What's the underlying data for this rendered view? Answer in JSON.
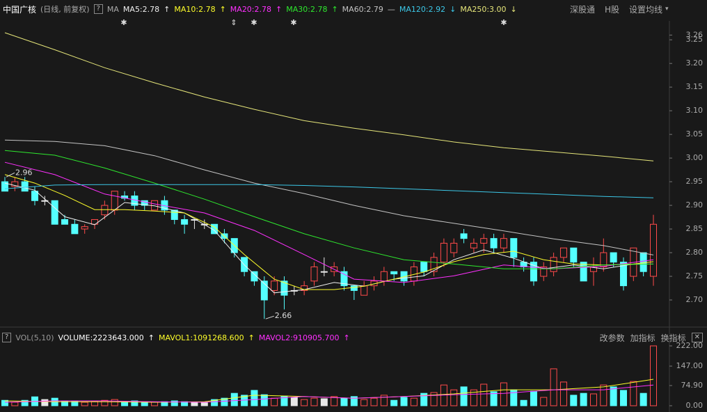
{
  "header": {
    "title": "中国广核",
    "subtitle": "(日线, 前复权)",
    "help": "?",
    "indicator": "MA",
    "buttons": [
      "深股通",
      "H股",
      "设置均线"
    ],
    "menu_arrow": "▾"
  },
  "chart_data": [
    {
      "type": "candlestick",
      "open": [
        2.95,
        2.94,
        2.95,
        2.93,
        2.91,
        2.91,
        2.87,
        2.86,
        2.85,
        2.86,
        2.88,
        2.89,
        2.92,
        2.92,
        2.91,
        2.89,
        2.91,
        2.89,
        2.87,
        2.87,
        2.86,
        2.86,
        2.84,
        2.83,
        2.79,
        2.76,
        2.74,
        2.72,
        2.74,
        2.72,
        2.72,
        2.74,
        2.76,
        2.76,
        2.76,
        2.73,
        2.71,
        2.73,
        2.74,
        2.76,
        2.76,
        2.74,
        2.78,
        2.76,
        2.78,
        2.8,
        2.84,
        2.81,
        2.82,
        2.83,
        2.81,
        2.83,
        2.78,
        2.78,
        2.75,
        2.76,
        2.79,
        2.81,
        2.78,
        2.76,
        2.77,
        2.8,
        2.78,
        2.75,
        2.8,
        2.75
      ],
      "high": [
        2.96,
        2.96,
        2.96,
        2.94,
        2.92,
        2.91,
        2.88,
        2.87,
        2.86,
        2.87,
        2.91,
        2.93,
        2.93,
        2.93,
        2.91,
        2.91,
        2.92,
        2.89,
        2.88,
        2.87,
        2.87,
        2.86,
        2.85,
        2.83,
        2.79,
        2.76,
        2.75,
        2.75,
        2.75,
        2.73,
        2.74,
        2.78,
        2.79,
        2.78,
        2.77,
        2.73,
        2.74,
        2.75,
        2.77,
        2.76,
        2.76,
        2.78,
        2.78,
        2.8,
        2.83,
        2.83,
        2.85,
        2.83,
        2.84,
        2.84,
        2.84,
        2.83,
        2.79,
        2.79,
        2.78,
        2.8,
        2.81,
        2.81,
        2.78,
        2.79,
        2.83,
        2.8,
        2.79,
        2.81,
        2.8,
        2.88
      ],
      "low": [
        2.93,
        2.93,
        2.93,
        2.9,
        2.9,
        2.86,
        2.86,
        2.84,
        2.84,
        2.85,
        2.87,
        2.88,
        2.91,
        2.89,
        2.89,
        2.89,
        2.88,
        2.86,
        2.84,
        2.85,
        2.85,
        2.84,
        2.82,
        2.79,
        2.75,
        2.73,
        2.66,
        2.71,
        2.68,
        2.71,
        2.71,
        2.73,
        2.75,
        2.75,
        2.72,
        2.7,
        2.71,
        2.72,
        2.73,
        2.74,
        2.73,
        2.73,
        2.75,
        2.75,
        2.77,
        2.79,
        2.82,
        2.8,
        2.8,
        2.8,
        2.8,
        2.77,
        2.76,
        2.73,
        2.74,
        2.75,
        2.78,
        2.77,
        2.74,
        2.73,
        2.76,
        2.77,
        2.72,
        2.74,
        2.75,
        2.73
      ],
      "close": [
        2.93,
        2.95,
        2.93,
        2.91,
        2.91,
        2.86,
        2.86,
        2.84,
        2.855,
        2.87,
        2.9,
        2.93,
        2.915,
        2.9,
        2.9,
        2.91,
        2.89,
        2.87,
        2.86,
        2.87,
        2.86,
        2.84,
        2.83,
        2.8,
        2.76,
        2.74,
        2.7,
        2.74,
        2.71,
        2.72,
        2.73,
        2.77,
        2.76,
        2.77,
        2.73,
        2.72,
        2.73,
        2.74,
        2.76,
        2.755,
        2.74,
        2.77,
        2.76,
        2.79,
        2.82,
        2.82,
        2.83,
        2.82,
        2.83,
        2.81,
        2.83,
        2.79,
        2.77,
        2.74,
        2.77,
        2.79,
        2.81,
        2.78,
        2.74,
        2.77,
        2.8,
        2.78,
        2.73,
        2.81,
        2.76,
        2.86
      ],
      "up_color": "#ff4a4a",
      "down_color": "#54ffff",
      "flat_color": "#e8e8e8",
      "ylim": [
        2.65,
        3.29
      ],
      "yticks": [
        {
          "value": 2.7,
          "label": "2.70"
        },
        2.75,
        {
          "value": 2.8,
          "label": "2.80"
        },
        2.85,
        {
          "value": 2.9,
          "label": "2.90"
        },
        2.95,
        {
          "value": 3.0,
          "label": "3.00"
        },
        3.05,
        {
          "value": 3.1,
          "label": "3.10"
        },
        3.15,
        {
          "value": 3.2,
          "label": "3.20"
        },
        3.25,
        3.26
      ],
      "grid": false,
      "max_label": 2.96,
      "min_label": 2.66,
      "series": [
        {
          "name": "MA5:2.78",
          "trend": "↑",
          "color": "#f0f0f0",
          "x": [
            0,
            3,
            6,
            9,
            12,
            15,
            18,
            21,
            24,
            27,
            30,
            33,
            36,
            39,
            42,
            45,
            48,
            51,
            54,
            57,
            60,
            63,
            65
          ],
          "values": [
            2.947,
            2.932,
            2.876,
            2.859,
            2.906,
            2.899,
            2.884,
            2.847,
            2.774,
            2.715,
            2.722,
            2.737,
            2.729,
            2.744,
            2.751,
            2.785,
            2.806,
            2.788,
            2.766,
            2.774,
            2.766,
            2.776,
            2.776
          ]
        },
        {
          "name": "MA10:2.78",
          "trend": "↑",
          "color": "#ffff2a",
          "x": [
            0,
            3,
            6,
            9,
            12,
            15,
            18,
            21,
            24,
            27,
            30,
            33,
            36,
            39,
            42,
            45,
            48,
            51,
            54,
            57,
            60,
            63,
            65
          ],
          "values": [
            2.965,
            2.947,
            2.921,
            2.891,
            2.891,
            2.888,
            2.884,
            2.854,
            2.796,
            2.744,
            2.722,
            2.722,
            2.729,
            2.744,
            2.759,
            2.781,
            2.796,
            2.803,
            2.785,
            2.776,
            2.774,
            2.776,
            2.781
          ]
        },
        {
          "name": "MA20:2.78",
          "trend": "↑",
          "color": "#ff30ff",
          "x": [
            0,
            5,
            10,
            15,
            20,
            25,
            30,
            35,
            40,
            45,
            50,
            55,
            60,
            65
          ],
          "values": [
            2.991,
            2.965,
            2.924,
            2.903,
            2.884,
            2.847,
            2.796,
            2.744,
            2.737,
            2.751,
            2.774,
            2.766,
            2.771,
            2.785
          ]
        },
        {
          "name": "MA30:2.78",
          "trend": "↑",
          "color": "#2ee82e",
          "x": [
            0,
            5,
            10,
            15,
            20,
            25,
            30,
            35,
            40,
            45,
            50,
            55,
            60,
            65
          ],
          "values": [
            3.016,
            3.006,
            2.979,
            2.947,
            2.913,
            2.876,
            2.84,
            2.81,
            2.785,
            2.776,
            2.766,
            2.766,
            2.774,
            2.776
          ]
        },
        {
          "name": "MA60:2.79",
          "trend": "—",
          "color": "#c4c4c4",
          "x": [
            0,
            5,
            10,
            15,
            20,
            25,
            30,
            35,
            40,
            45,
            50,
            55,
            60,
            65
          ],
          "values": [
            3.038,
            3.035,
            3.026,
            3.005,
            2.975,
            2.947,
            2.925,
            2.9,
            2.878,
            2.862,
            2.846,
            2.829,
            2.815,
            2.795
          ]
        },
        {
          "name": "MA120:2.92",
          "trend": "↓",
          "color": "#3cc8e8",
          "x": [
            0,
            5,
            10,
            15,
            20,
            25,
            30,
            35,
            40,
            45,
            50,
            55,
            60,
            65
          ],
          "values": [
            2.935,
            2.943,
            2.944,
            2.944,
            2.944,
            2.944,
            2.942,
            2.939,
            2.935,
            2.931,
            2.927,
            2.923,
            2.919,
            2.916
          ]
        },
        {
          "name": "MA250:3.00",
          "trend": "↓",
          "color": "#e6e67a",
          "x": [
            0,
            5,
            10,
            15,
            20,
            25,
            30,
            35,
            40,
            45,
            50,
            55,
            60,
            65
          ],
          "values": [
            3.265,
            3.229,
            3.191,
            3.159,
            3.129,
            3.103,
            3.079,
            3.063,
            3.049,
            3.034,
            3.022,
            3.013,
            3.004,
            2.994
          ]
        }
      ]
    },
    {
      "type": "bar",
      "title": "VOL(5,10)",
      "help": "?",
      "subtitle": "VOLUME:2223643.000",
      "trend": "↑",
      "values": [
        20,
        13,
        20,
        33,
        23,
        28,
        18,
        18,
        13,
        15,
        20,
        23,
        15,
        18,
        15,
        13,
        15,
        18,
        15,
        13,
        13,
        23,
        28,
        46,
        39,
        57,
        41,
        28,
        36,
        31,
        23,
        28,
        26,
        34,
        28,
        34,
        23,
        28,
        39,
        20,
        31,
        28,
        46,
        49,
        77,
        59,
        70,
        59,
        80,
        52,
        85,
        59,
        20,
        54,
        31,
        137,
        88,
        39,
        46,
        44,
        77,
        70,
        57,
        90,
        46,
        222
      ],
      "ylim": [
        0,
        222
      ],
      "yticks": [
        {
          "value": 0,
          "label": "0.00"
        },
        {
          "value": 74.9,
          "label": "74.90"
        },
        {
          "value": 147,
          "label": "147.00"
        },
        {
          "value": 222,
          "label": "222.00"
        }
      ],
      "buttons": [
        "改参数",
        "加指标",
        "换指标"
      ],
      "close_button": "✕",
      "series": [
        {
          "name": "MAVOL1:1091268.600",
          "trend": "↑",
          "color": "#ffff2a",
          "x": [
            0,
            5,
            10,
            15,
            20,
            25,
            30,
            35,
            40,
            45,
            50,
            55,
            60,
            65
          ],
          "values": [
            18,
            15,
            15,
            13,
            15,
            39,
            34,
            28,
            34,
            44,
            59,
            59,
            70,
            98
          ]
        },
        {
          "name": "MAVOL2:910905.700",
          "trend": "↑",
          "color": "#ff30ff",
          "x": [
            0,
            5,
            10,
            15,
            20,
            25,
            30,
            35,
            40,
            45,
            50,
            55,
            60,
            65
          ],
          "values": [
            13,
            18,
            18,
            15,
            13,
            23,
            34,
            28,
            34,
            41,
            46,
            59,
            59,
            77
          ]
        }
      ]
    }
  ]
}
